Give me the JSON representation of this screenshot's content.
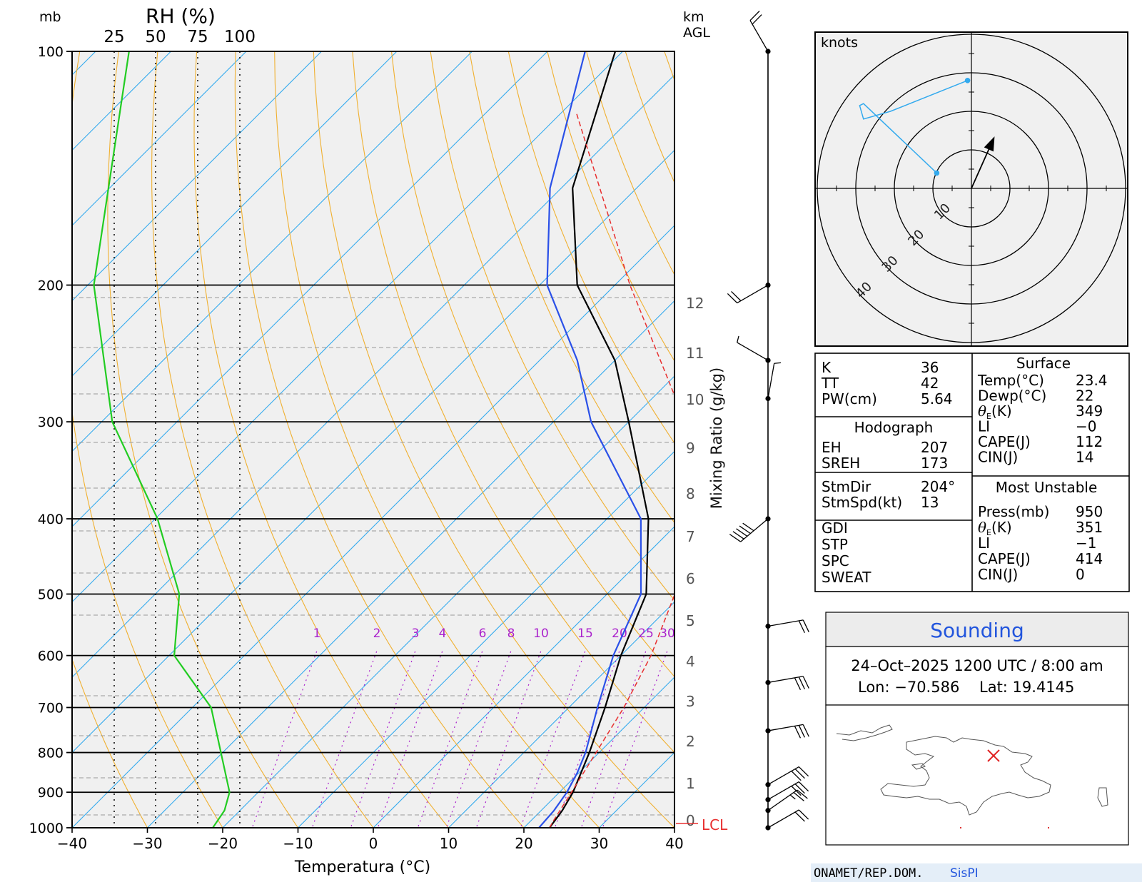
{
  "skewt": {
    "left_labels": {
      "mb": "mb",
      "rh": "RH (%)"
    },
    "right_labels": {
      "km": "km",
      "agl": "AGL"
    },
    "rh_ticks": [
      "25",
      "50",
      "75",
      "100"
    ],
    "pressure_ticks": [
      "100",
      "200",
      "300",
      "400",
      "500",
      "600",
      "700",
      "800",
      "900",
      "1000"
    ],
    "temp_ticks": [
      "−40",
      "−30",
      "−20",
      "−10",
      "0",
      "10",
      "20",
      "30",
      "40"
    ],
    "height_ticks": [
      "12",
      "11",
      "10",
      "9",
      "8",
      "7",
      "6",
      "5",
      "4",
      "3",
      "2",
      "1",
      "0"
    ],
    "mixing_labels": [
      "1",
      "2",
      "3",
      "4",
      "6",
      "8",
      "10",
      "15",
      "20",
      "25",
      "30"
    ],
    "xlabel": "Temperatura (°C)",
    "mixing_axis_label": "Mixing Ratio (g/kg)",
    "lcl_label": "LCL"
  },
  "chart_data": {
    "type": "line",
    "title": "",
    "xlabel": "Temperatura (°C)",
    "ylabel": "mb",
    "xlim": [
      -40,
      40
    ],
    "ylim": [
      1000,
      100
    ],
    "y_scale": "log",
    "series": [
      {
        "name": "",
        "color": "#000000",
        "points": [
          [
            1000,
            23.4
          ],
          [
            950,
            22.8
          ],
          [
            900,
            21.8
          ],
          [
            850,
            20.3
          ],
          [
            800,
            18.7
          ],
          [
            700,
            14.8
          ],
          [
            600,
            10.0
          ],
          [
            500,
            5.2
          ],
          [
            400,
            -4.5
          ],
          [
            300,
            -20.0
          ],
          [
            250,
            -30.0
          ],
          [
            200,
            -45.0
          ],
          [
            150,
            -58.5
          ],
          [
            100,
            -71.0
          ]
        ]
      },
      {
        "name": "",
        "color": "#2a50e8",
        "points": [
          [
            1000,
            22.0
          ],
          [
            950,
            21.7
          ],
          [
            900,
            21.0
          ],
          [
            850,
            19.8
          ],
          [
            800,
            18.2
          ],
          [
            700,
            13.8
          ],
          [
            600,
            9.0
          ],
          [
            500,
            4.5
          ],
          [
            400,
            -5.5
          ],
          [
            300,
            -25.0
          ],
          [
            250,
            -35.0
          ],
          [
            200,
            -49.0
          ],
          [
            150,
            -61.5
          ],
          [
            100,
            -75.0
          ]
        ]
      },
      {
        "name": "",
        "color": "#22cc22",
        "points": [
          [
            1000,
            84
          ],
          [
            950,
            91
          ],
          [
            900,
            94
          ],
          [
            700,
            83
          ],
          [
            600,
            61
          ],
          [
            500,
            64
          ],
          [
            400,
            51
          ],
          [
            300,
            24
          ],
          [
            200,
            13
          ],
          [
            100,
            34
          ]
        ]
      },
      {
        "name": "",
        "color": "#e83030",
        "dashed": true,
        "points": [
          [
            1000,
            23.4
          ],
          [
            980,
            23.0
          ],
          [
            900,
            21.6
          ],
          [
            800,
            19.6
          ],
          [
            700,
            17.3
          ],
          [
            600,
            14.0
          ],
          [
            500,
            9.0
          ],
          [
            400,
            1.0
          ],
          [
            300,
            -12.5
          ],
          [
            200,
            -38.0
          ],
          [
            120,
            -68.0
          ]
        ]
      }
    ],
    "height_axis_km": [
      0,
      1,
      2,
      3,
      4,
      5,
      6,
      7,
      8,
      9,
      10,
      11,
      12
    ],
    "mixing_ratio_gkg": [
      1,
      2,
      3,
      4,
      6,
      8,
      10,
      15,
      20,
      25,
      30
    ],
    "lcl": "LCL"
  },
  "wind_profile": {
    "barbs": [
      {
        "p": 100,
        "dir": 330,
        "spd": 20
      },
      {
        "p": 200,
        "dir": 240,
        "spd": 20
      },
      {
        "p": 250,
        "dir": 300,
        "spd": 5
      },
      {
        "p": 280,
        "dir": 10,
        "spd": 5
      },
      {
        "p": 400,
        "dir": 230,
        "spd": 50
      },
      {
        "p": 550,
        "dir": 80,
        "spd": 20
      },
      {
        "p": 650,
        "dir": 80,
        "spd": 30
      },
      {
        "p": 750,
        "dir": 80,
        "spd": 30
      },
      {
        "p": 880,
        "dir": 60,
        "spd": 30
      },
      {
        "p": 920,
        "dir": 60,
        "spd": 30
      },
      {
        "p": 950,
        "dir": 55,
        "spd": 25
      },
      {
        "p": 1000,
        "dir": 60,
        "spd": 20
      }
    ]
  },
  "hodograph": {
    "units": "knots",
    "ring_labels": [
      "10",
      "20",
      "30",
      "40"
    ],
    "points_kt": [
      [
        -9,
        4
      ],
      [
        -28,
        22
      ],
      [
        -29,
        21.5
      ],
      [
        -28,
        18
      ],
      [
        -21,
        20
      ],
      [
        -1,
        28
      ]
    ],
    "storm_motion_kt": [
      5.3,
      11.9
    ]
  },
  "indices": {
    "left_top": [
      {
        "label": "K",
        "value": "36"
      },
      {
        "label": "TT",
        "value": "42"
      },
      {
        "label": "PW(cm)",
        "value": "5.64"
      }
    ],
    "hodo_title": "Hodograph",
    "hodo_rows": [
      {
        "label": "EH",
        "value": "207"
      },
      {
        "label": "SREH",
        "value": "173"
      }
    ],
    "storm_rows": [
      {
        "label": "StmDir",
        "value": "204°"
      },
      {
        "label": "StmSpd(kt)",
        "value": "13"
      }
    ],
    "other_rows": [
      "GDI",
      "STP",
      "SPC",
      "SWEAT"
    ],
    "surface_title": "Surface",
    "surface_rows": [
      {
        "label": "Temp(°C)",
        "value": "23.4"
      },
      {
        "label": "Dewp(°C)",
        "value": "22"
      },
      {
        "label": "θE(K)",
        "value": "349"
      },
      {
        "label": "LI",
        "value": "−0"
      },
      {
        "label": "CAPE(J)",
        "value": "112"
      },
      {
        "label": "CIN(J)",
        "value": "14"
      }
    ],
    "mu_title": "Most Unstable",
    "mu_rows": [
      {
        "label": "Press(mb)",
        "value": "950"
      },
      {
        "label": "θE(K)",
        "value": "351"
      },
      {
        "label": "LI",
        "value": "−1"
      },
      {
        "label": "CAPE(J)",
        "value": "414"
      },
      {
        "label": "CIN(J)",
        "value": "0"
      }
    ]
  },
  "sounding_box": {
    "title": "Sounding",
    "datetime": "24–Oct–2025 1200 UTC / 8:00 am",
    "lon": "Lon: −70.586",
    "lat": "Lat: 19.4145"
  },
  "footer": {
    "org": "ONAMET/REP.DOM.",
    "brand": "SisPI"
  },
  "colors": {
    "plot_bg": "#f0f0f0",
    "isotherm": "#33aaee",
    "dry_adiabat": "#f0b030",
    "mixing_ratio": "#aa22cc",
    "title_blue": "#2255dd",
    "footer_bg": "#e4eef8"
  }
}
